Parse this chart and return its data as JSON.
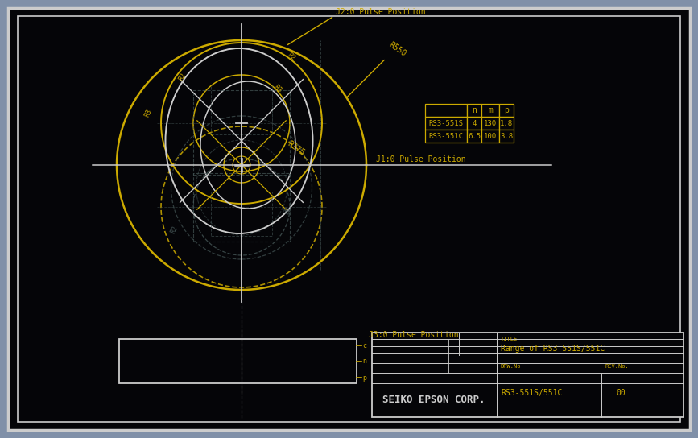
{
  "outer_bg": "#8090a8",
  "inner_bg": "#050508",
  "yellow": "#ccaa00",
  "white": "#cccccc",
  "gray_dash": "#445555",
  "company": "SEIKO EPSON CORP.",
  "title_label": "TITLE",
  "title_text": "Range of RS3-551S/551C",
  "drw_label": "DRW.No.",
  "drw_text": "RS3-551S/551C",
  "rev_label": "REV.No.",
  "rev_text": "00",
  "table_headers": [
    "",
    "n",
    "m",
    "p"
  ],
  "table_rows": [
    [
      "RS3-551S",
      "4",
      "130",
      "1.8"
    ],
    [
      "RS3-551C",
      "6.5",
      "100",
      "3.8"
    ]
  ],
  "label_R550": "R550",
  "label_R275": "R275",
  "label_J20": "J2:0 Pulse Position",
  "label_J10": "J1:0 Pulse Position",
  "label_J30": "J3:0 Pulse Position",
  "fig_w": 8.67,
  "fig_h": 5.44
}
